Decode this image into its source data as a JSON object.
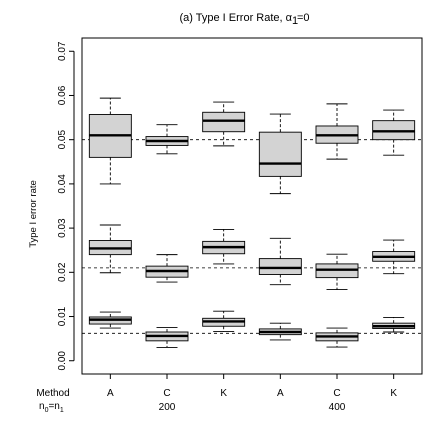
{
  "chart_data": {
    "type": "boxplot",
    "title": "(a) Type I Error Rate, α",
    "title_subscript": "1",
    "title_suffix": "=0",
    "ylabel": "Type I error rate",
    "ylim": [
      -0.003,
      0.073
    ],
    "yticks": [
      "0.00",
      "0.01",
      "0.02",
      "0.03",
      "0.04",
      "0.05",
      "0.06",
      "0.07"
    ],
    "ytick_values": [
      0.0,
      0.01,
      0.02,
      0.03,
      0.04,
      0.05,
      0.06,
      0.07
    ],
    "reference_lines": [
      0.05,
      0.021,
      0.0062
    ],
    "row_labels": {
      "method": "Method",
      "n_main": "n",
      "n_sub0": "0",
      "n_eq": "=n",
      "n_sub1": "1"
    },
    "groups": [
      {
        "method": "A",
        "n": ""
      },
      {
        "method": "C",
        "n": "200"
      },
      {
        "method": "K",
        "n": ""
      },
      {
        "method": "A",
        "n": ""
      },
      {
        "method": "C",
        "n": "400"
      },
      {
        "method": "K",
        "n": ""
      }
    ],
    "box_fill": "#d3d3d3",
    "series": [
      {
        "boxes": [
          {
            "min": 0.04,
            "q1": 0.046,
            "median": 0.051,
            "q3": 0.0557,
            "max": 0.0594
          },
          {
            "min": 0.0468,
            "q1": 0.0487,
            "median": 0.0497,
            "q3": 0.0507,
            "max": 0.0534
          },
          {
            "min": 0.0486,
            "q1": 0.0518,
            "median": 0.0543,
            "q3": 0.0562,
            "max": 0.0585
          },
          {
            "min": 0.0378,
            "q1": 0.0417,
            "median": 0.0446,
            "q3": 0.0517,
            "max": 0.0558
          },
          {
            "min": 0.0456,
            "q1": 0.0492,
            "median": 0.051,
            "q3": 0.0531,
            "max": 0.0581
          },
          {
            "min": 0.0465,
            "q1": 0.05,
            "median": 0.0519,
            "q3": 0.0543,
            "max": 0.0567
          }
        ]
      },
      {
        "boxes": [
          {
            "min": 0.0199,
            "q1": 0.024,
            "median": 0.0254,
            "q3": 0.0272,
            "max": 0.0307
          },
          {
            "min": 0.0178,
            "q1": 0.0189,
            "median": 0.0203,
            "q3": 0.0214,
            "max": 0.024
          },
          {
            "min": 0.0219,
            "q1": 0.0242,
            "median": 0.0257,
            "q3": 0.027,
            "max": 0.0297
          },
          {
            "min": 0.0172,
            "q1": 0.0195,
            "median": 0.021,
            "q3": 0.0231,
            "max": 0.0277
          },
          {
            "min": 0.0161,
            "q1": 0.0188,
            "median": 0.0206,
            "q3": 0.0219,
            "max": 0.0241
          },
          {
            "min": 0.0197,
            "q1": 0.0225,
            "median": 0.0235,
            "q3": 0.0247,
            "max": 0.0273
          }
        ]
      },
      {
        "boxes": [
          {
            "min": 0.0074,
            "q1": 0.0083,
            "median": 0.0093,
            "q3": 0.0099,
            "max": 0.011
          },
          {
            "min": 0.003,
            "q1": 0.0045,
            "median": 0.0056,
            "q3": 0.0065,
            "max": 0.0075
          },
          {
            "min": 0.0066,
            "q1": 0.0078,
            "median": 0.0089,
            "q3": 0.0096,
            "max": 0.0112
          },
          {
            "min": 0.0047,
            "q1": 0.0059,
            "median": 0.0065,
            "q3": 0.0072,
            "max": 0.0085
          },
          {
            "min": 0.0031,
            "q1": 0.0045,
            "median": 0.0055,
            "q3": 0.0063,
            "max": 0.0074
          },
          {
            "min": 0.0065,
            "q1": 0.0073,
            "median": 0.0078,
            "q3": 0.0085,
            "max": 0.0098
          }
        ]
      }
    ]
  }
}
